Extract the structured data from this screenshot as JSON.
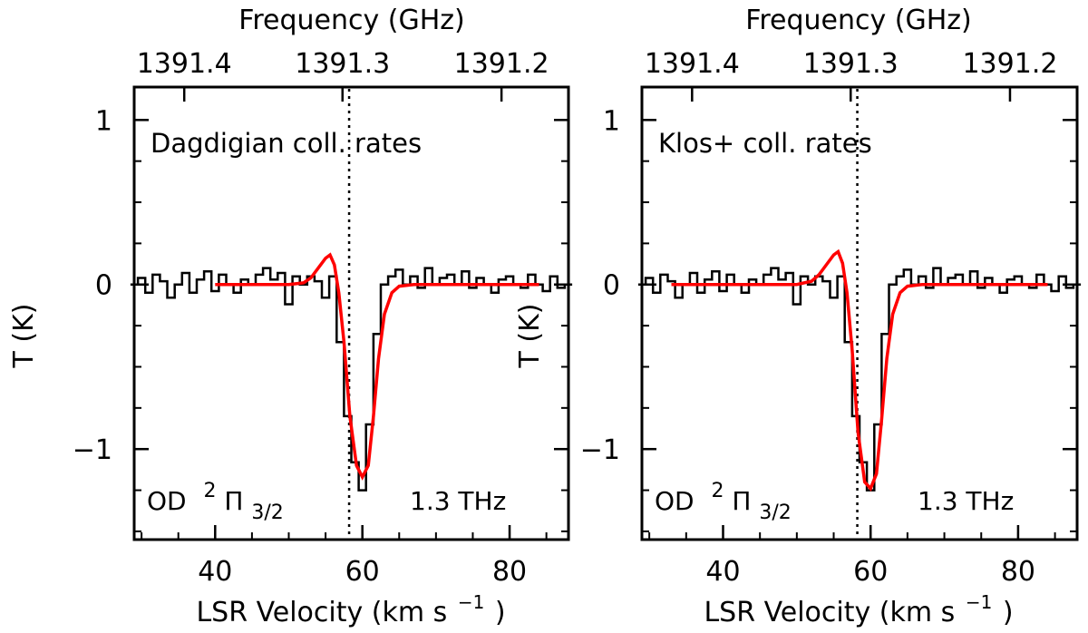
{
  "chart_data": [
    {
      "type": "line",
      "title": "",
      "xlabel": "LSR Velocity (km s",
      "xlabel_superscript": "−1",
      "xlabel_close": ")",
      "ylabel": "T (K)",
      "top_axis_label": "Frequency (GHz)",
      "top_ticks": [
        {
          "label": "1391.4",
          "velocity": 35.8
        },
        {
          "label": "1391.3",
          "velocity": 57.3
        },
        {
          "label": "1391.2",
          "velocity": 78.9
        }
      ],
      "xlim": [
        29,
        88
      ],
      "ylim": [
        -1.55,
        1.2
      ],
      "x_ticks": [
        40,
        60,
        80
      ],
      "y_ticks": [
        {
          "value": 1,
          "label": "1"
        },
        {
          "value": 0,
          "label": "0"
        },
        {
          "value": -1,
          "label": "−1"
        }
      ],
      "vline_x": 58.2,
      "annotation_top": "Dagdigian coll. rates",
      "species": "OD",
      "species_sup": "2",
      "species_state": "Π",
      "species_sub": "3/2",
      "frequency_note": "1.3 THz",
      "observed": {
        "style": "histogram",
        "color": "#000000",
        "x": [
          29,
          30,
          31,
          32,
          33,
          34,
          35,
          36,
          37,
          38,
          39,
          40,
          41,
          42,
          43,
          44,
          45,
          46,
          47,
          48,
          49,
          50,
          51,
          52,
          53,
          54,
          55,
          56,
          57,
          58,
          59,
          60,
          61,
          62,
          63,
          64,
          65,
          66,
          67,
          68,
          69,
          70,
          71,
          72,
          73,
          74,
          75,
          76,
          77,
          78,
          79,
          80,
          81,
          82,
          83,
          84,
          85,
          86,
          87,
          88
        ],
        "y": [
          0.0,
          0.04,
          -0.05,
          0.06,
          0.02,
          -0.08,
          0.0,
          0.07,
          -0.05,
          0.03,
          0.08,
          -0.04,
          0.06,
          0.0,
          -0.05,
          0.03,
          0.0,
          0.06,
          0.1,
          0.03,
          0.07,
          -0.12,
          0.05,
          0.0,
          0.05,
          0.02,
          -0.08,
          0.05,
          -0.35,
          -0.8,
          -1.08,
          -1.25,
          -0.85,
          -0.3,
          0.0,
          0.05,
          0.09,
          0.0,
          0.05,
          -0.02,
          0.1,
          0.0,
          0.04,
          0.06,
          0.0,
          0.08,
          -0.02,
          0.04,
          0.0,
          -0.05,
          0.03,
          0.05,
          0.0,
          -0.02,
          0.06,
          0.0,
          -0.04,
          0.05,
          -0.02,
          0.0
        ]
      },
      "model": {
        "style": "line",
        "color": "#ff0000",
        "x": [
          40,
          50,
          52,
          53,
          54,
          55,
          55.6,
          56.2,
          56.8,
          57.5,
          58.3,
          59.2,
          60.0,
          60.8,
          61.5,
          62.2,
          63.0,
          64.0,
          65.0,
          67.0,
          70,
          75,
          80,
          84
        ],
        "y": [
          0.0,
          0.0,
          0.01,
          0.04,
          0.1,
          0.16,
          0.18,
          0.12,
          -0.05,
          -0.35,
          -0.8,
          -1.1,
          -1.17,
          -1.1,
          -0.8,
          -0.45,
          -0.18,
          -0.05,
          -0.01,
          0.0,
          0.0,
          0.0,
          0.0,
          0.0
        ]
      }
    },
    {
      "type": "line",
      "title": "",
      "xlabel": "LSR Velocity (km s",
      "xlabel_superscript": "−1",
      "xlabel_close": ")",
      "ylabel": "T (K)",
      "top_axis_label": "Frequency (GHz)",
      "top_ticks": [
        {
          "label": "1391.4",
          "velocity": 35.8
        },
        {
          "label": "1391.3",
          "velocity": 57.3
        },
        {
          "label": "1391.2",
          "velocity": 78.9
        }
      ],
      "xlim": [
        29,
        88
      ],
      "ylim": [
        -1.55,
        1.2
      ],
      "x_ticks": [
        40,
        60,
        80
      ],
      "y_ticks": [
        {
          "value": 1,
          "label": "1"
        },
        {
          "value": 0,
          "label": "0"
        },
        {
          "value": -1,
          "label": "−1"
        }
      ],
      "vline_x": 58.2,
      "annotation_top": "Klos+ coll. rates",
      "species": "OD",
      "species_sup": "2",
      "species_state": "Π",
      "species_sub": "3/2",
      "frequency_note": "1.3 THz",
      "observed": {
        "style": "histogram",
        "color": "#000000",
        "x": [
          29,
          30,
          31,
          32,
          33,
          34,
          35,
          36,
          37,
          38,
          39,
          40,
          41,
          42,
          43,
          44,
          45,
          46,
          47,
          48,
          49,
          50,
          51,
          52,
          53,
          54,
          55,
          56,
          57,
          58,
          59,
          60,
          61,
          62,
          63,
          64,
          65,
          66,
          67,
          68,
          69,
          70,
          71,
          72,
          73,
          74,
          75,
          76,
          77,
          78,
          79,
          80,
          81,
          82,
          83,
          84,
          85,
          86,
          87,
          88
        ],
        "y": [
          0.0,
          0.04,
          -0.05,
          0.06,
          0.02,
          -0.08,
          0.0,
          0.07,
          -0.05,
          0.03,
          0.08,
          -0.04,
          0.06,
          0.0,
          -0.05,
          0.03,
          0.0,
          0.06,
          0.1,
          0.03,
          0.07,
          -0.12,
          0.05,
          0.0,
          0.05,
          0.02,
          -0.08,
          0.05,
          -0.35,
          -0.8,
          -1.08,
          -1.25,
          -0.85,
          -0.3,
          0.0,
          0.05,
          0.09,
          0.0,
          0.05,
          -0.02,
          0.1,
          0.0,
          0.04,
          0.06,
          0.0,
          0.08,
          -0.02,
          0.04,
          0.0,
          -0.05,
          0.03,
          0.05,
          0.0,
          -0.02,
          0.06,
          0.0,
          -0.04,
          0.05,
          -0.02,
          0.0
        ]
      },
      "model": {
        "style": "line",
        "color": "#ff0000",
        "x": [
          33,
          50,
          52,
          53,
          54,
          55,
          55.6,
          56.2,
          56.8,
          57.5,
          58.3,
          59.2,
          60.0,
          60.8,
          61.5,
          62.2,
          63.0,
          64.0,
          65.0,
          67.0,
          70,
          75,
          80,
          84
        ],
        "y": [
          0.0,
          0.0,
          0.02,
          0.06,
          0.12,
          0.18,
          0.2,
          0.13,
          -0.05,
          -0.4,
          -0.9,
          -1.2,
          -1.24,
          -1.15,
          -0.82,
          -0.45,
          -0.18,
          -0.05,
          -0.01,
          0.0,
          0.0,
          0.0,
          0.0,
          0.0
        ]
      }
    }
  ]
}
